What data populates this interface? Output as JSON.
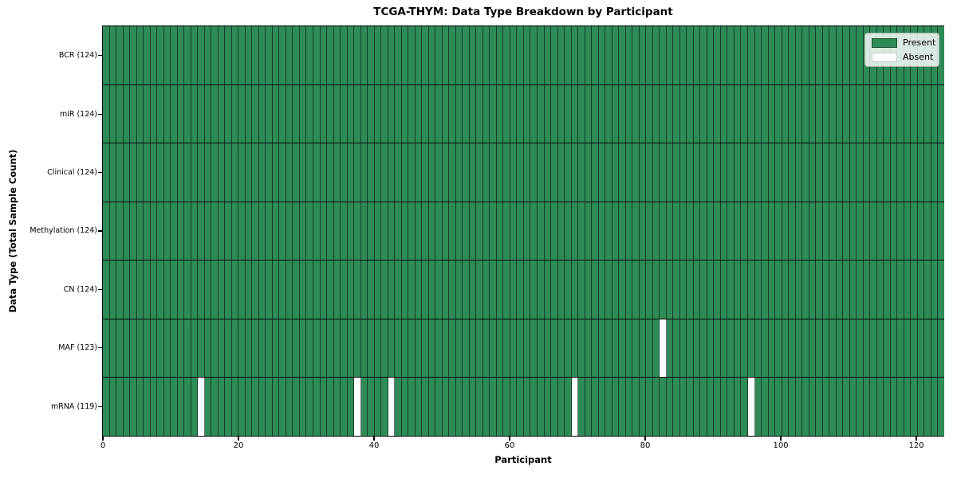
{
  "chart_data": {
    "type": "heatmap",
    "title": "TCGA-THYM: Data Type Breakdown by Participant",
    "xlabel": "Participant",
    "ylabel": "Data Type (Total Sample Count)",
    "n_participants": 124,
    "x_range": [
      0,
      124
    ],
    "x_ticks": [
      0,
      20,
      40,
      60,
      80,
      100,
      120
    ],
    "grid": "cell-edges-on",
    "legend_position": "upper right",
    "legend": [
      {
        "label": "Present",
        "value": "present",
        "color": "#2E8B57"
      },
      {
        "label": "Absent",
        "value": "absent",
        "color": "#FFFFFF"
      }
    ],
    "rows": [
      {
        "label": "BCR (124)",
        "data_type": "BCR",
        "present_count": 124,
        "absent_participants": []
      },
      {
        "label": "miR (124)",
        "data_type": "miR",
        "present_count": 124,
        "absent_participants": []
      },
      {
        "label": "Clinical (124)",
        "data_type": "Clinical",
        "present_count": 124,
        "absent_participants": []
      },
      {
        "label": "Methylation (124)",
        "data_type": "Methylation",
        "present_count": 124,
        "absent_participants": []
      },
      {
        "label": "CN (124)",
        "data_type": "CN",
        "present_count": 124,
        "absent_participants": []
      },
      {
        "label": "MAF (123)",
        "data_type": "MAF",
        "present_count": 123,
        "absent_participants": [
          82
        ]
      },
      {
        "label": "mRNA (119)",
        "data_type": "mRNA",
        "present_count": 119,
        "absent_participants": [
          14,
          37,
          42,
          69,
          95
        ]
      }
    ],
    "colors": {
      "present": "#2E8B57",
      "absent": "#FFFFFF",
      "cell_edge": "rgba(0,0,0,0.55)",
      "row_divider": "#0b0b0b",
      "axis_spine": "#000000",
      "legend_border": "#a8b0a8"
    }
  }
}
